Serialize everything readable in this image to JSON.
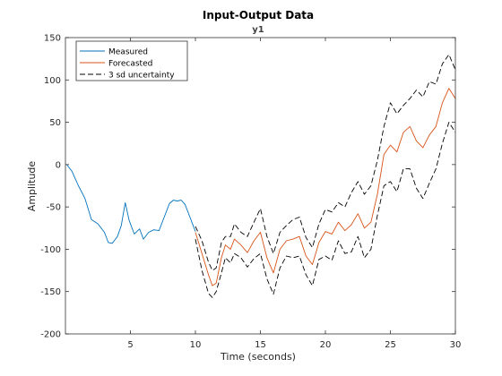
{
  "window": {
    "background": "#ffffff"
  },
  "chart_data": {
    "type": "line",
    "title": "Input-Output Data",
    "subtitle": "y1",
    "xlabel": "Time (seconds)",
    "ylabel": "Amplitude",
    "xlim": [
      0,
      30
    ],
    "ylim": [
      -200,
      150
    ],
    "grid": false,
    "legend_position": "top-left",
    "x_ticks": [
      5,
      10,
      15,
      20,
      25,
      30
    ],
    "y_ticks": [
      -200,
      -150,
      -100,
      -50,
      0,
      50,
      100,
      150
    ],
    "colors": {
      "measured": "#0072BD",
      "forecasted": "#D95319",
      "uncertainty": "#000000"
    },
    "series": [
      {
        "name": "Measured",
        "style": "solid",
        "x": [
          0.1,
          0.5,
          1.0,
          1.5,
          2.0,
          2.5,
          3.0,
          3.3,
          3.6,
          4.0,
          4.3,
          4.6,
          4.9,
          5.3,
          5.7,
          6.0,
          6.4,
          6.8,
          7.2,
          7.6,
          8.0,
          8.3,
          8.6,
          8.9,
          9.2,
          9.6,
          10.0
        ],
        "y": [
          0,
          -8,
          -25,
          -40,
          -65,
          -70,
          -80,
          -92,
          -93,
          -85,
          -72,
          -45,
          -66,
          -82,
          -76,
          -88,
          -80,
          -77,
          -78,
          -62,
          -46,
          -42,
          -43,
          -42,
          -47,
          -63,
          -79
        ]
      },
      {
        "name": "Forecasted",
        "style": "solid",
        "x": [
          10.0,
          10.5,
          11.0,
          11.3,
          11.6,
          12.0,
          12.3,
          12.7,
          13.0,
          13.5,
          14.0,
          14.5,
          15.0,
          15.5,
          16.0,
          16.5,
          17.0,
          17.5,
          18.0,
          18.5,
          19.0,
          19.5,
          20.0,
          20.5,
          21.0,
          21.5,
          22.0,
          22.5,
          23.0,
          23.5,
          24.0,
          24.5,
          25.0,
          25.5,
          26.0,
          26.5,
          27.0,
          27.5,
          28.0,
          28.5,
          29.0,
          29.5,
          30.0
        ],
        "y": [
          -80,
          -105,
          -130,
          -143,
          -140,
          -110,
          -95,
          -100,
          -88,
          -95,
          -104,
          -90,
          -80,
          -110,
          -128,
          -100,
          -90,
          -88,
          -85,
          -108,
          -118,
          -92,
          -79,
          -82,
          -68,
          -78,
          -71,
          -58,
          -75,
          -68,
          -35,
          12,
          23,
          15,
          38,
          45,
          28,
          20,
          35,
          45,
          73,
          90,
          78
        ]
      },
      {
        "name": "3 sd uncertainty",
        "style": "dashed",
        "x": [
          10.0,
          10.5,
          11.0,
          11.3,
          11.6,
          12.0,
          12.3,
          12.7,
          13.0,
          13.5,
          14.0,
          14.5,
          15.0,
          15.5,
          16.0,
          16.5,
          17.0,
          17.5,
          18.0,
          18.5,
          19.0,
          19.5,
          20.0,
          20.5,
          21.0,
          21.5,
          22.0,
          22.5,
          23.0,
          23.5,
          24.0,
          24.5,
          25.0,
          25.5,
          26.0,
          26.5,
          27.0,
          27.5,
          28.0,
          28.5,
          29.0,
          29.5,
          30.0
        ],
        "y": [
          -73,
          -90,
          -115,
          -125,
          -122,
          -92,
          -85,
          -85,
          -70,
          -80,
          -85,
          -68,
          -52,
          -85,
          -105,
          -80,
          -72,
          -65,
          -62,
          -86,
          -98,
          -70,
          -53,
          -56,
          -45,
          -50,
          -33,
          -20,
          -35,
          -25,
          5,
          45,
          73,
          60,
          70,
          78,
          88,
          80,
          98,
          95,
          119,
          130,
          112
        ]
      },
      {
        "name": "",
        "style": "dashed",
        "x": [
          10.0,
          10.5,
          11.0,
          11.3,
          11.6,
          12.0,
          12.3,
          12.7,
          13.0,
          13.5,
          14.0,
          14.5,
          15.0,
          15.5,
          16.0,
          16.5,
          17.0,
          17.5,
          18.0,
          18.5,
          19.0,
          19.5,
          20.0,
          20.5,
          21.0,
          21.5,
          22.0,
          22.5,
          23.0,
          23.5,
          24.0,
          24.5,
          25.0,
          25.5,
          26.0,
          26.5,
          27.0,
          27.5,
          28.0,
          28.5,
          29.0,
          29.5,
          30.0
        ],
        "y": [
          -88,
          -125,
          -152,
          -157,
          -150,
          -128,
          -110,
          -116,
          -105,
          -110,
          -121,
          -111,
          -105,
          -135,
          -153,
          -122,
          -108,
          -110,
          -108,
          -130,
          -143,
          -112,
          -108,
          -113,
          -90,
          -105,
          -103,
          -85,
          -110,
          -100,
          -60,
          -25,
          -20,
          -32,
          -5,
          -5,
          -28,
          -40,
          -22,
          -5,
          25,
          50,
          38
        ]
      }
    ]
  }
}
